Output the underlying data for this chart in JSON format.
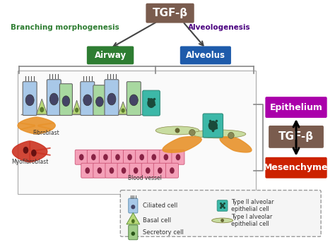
{
  "bg_color": "#ffffff",
  "tgfb_top": {
    "text": "TGF-β",
    "color": "#7a5c4e",
    "textcolor": "white"
  },
  "branching": {
    "text": "Branching morphogenesis",
    "color": "#2e7d32"
  },
  "alveologenesis": {
    "text": "Alveologenesis",
    "color": "#4a0080"
  },
  "airway": {
    "text": "Airway",
    "color": "#2e7d32",
    "textcolor": "white"
  },
  "alveolus": {
    "text": "Alveolus",
    "color": "#1e5bab",
    "textcolor": "white"
  },
  "epithelium": {
    "text": "Epithelium",
    "color": "#aa00aa",
    "textcolor": "white"
  },
  "tgfb_mid": {
    "text": "TGF-β",
    "color": "#7a5c4e",
    "textcolor": "white"
  },
  "mesenchyme": {
    "text": "Mesenchyme",
    "color": "#cc2200",
    "textcolor": "white"
  },
  "fibroblast_label": "Fibroblast",
  "myofibroblast_label": "Myofibroblast",
  "bloodvessel_label": "Blood vessel",
  "legend_labels": {
    "ciliated": "Ciliated cell",
    "type2": "Type II alveolar\nepithelial cell",
    "basal": "Basal cell",
    "type1": "Type I alveolar\nepithelial cell",
    "secretory": "Secretory cell"
  },
  "arrow_color": "#444444",
  "panel_edge": "#aaaaaa",
  "panel_face": "#ffffff"
}
